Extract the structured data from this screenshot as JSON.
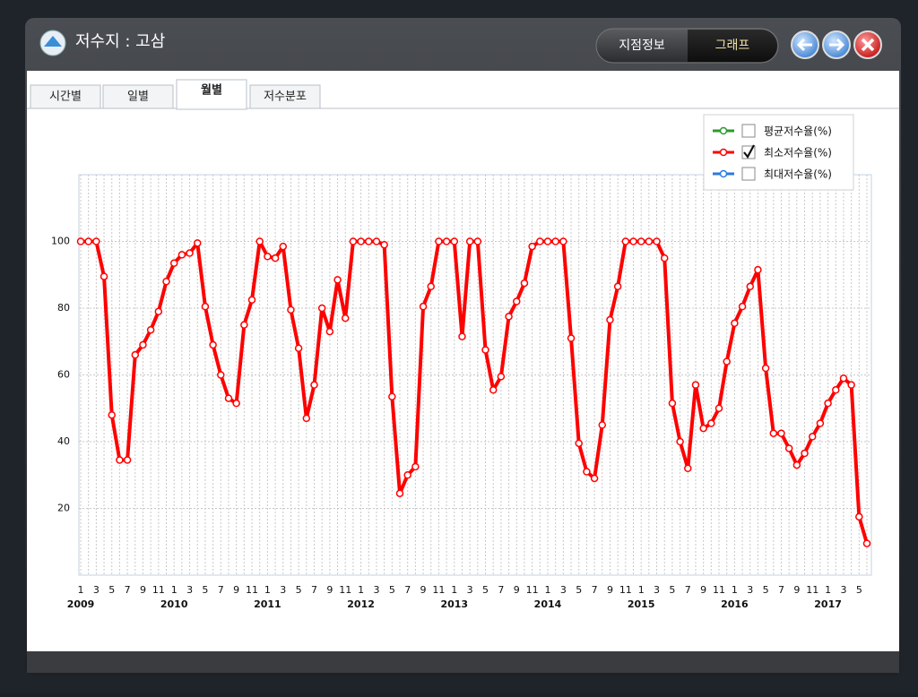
{
  "window": {
    "title": "저수지 : 고삼",
    "buttons": [
      "지점정보",
      "그래프"
    ],
    "active_button": 1
  },
  "tabs": {
    "items": [
      "시간별",
      "일별",
      "월별",
      "저수분포"
    ],
    "active": 2
  },
  "chart_data": {
    "type": "line",
    "categories": [
      "1",
      null,
      "3",
      null,
      "5",
      null,
      "7",
      null,
      "9",
      null,
      "11",
      null,
      "1",
      null,
      "3",
      null,
      "5",
      null,
      "7",
      null,
      "9",
      null,
      "11",
      null,
      "1",
      null,
      "3",
      null,
      "5",
      null,
      "7",
      null,
      "9",
      null,
      "11",
      null,
      "1",
      null,
      "3",
      null,
      "5",
      null,
      "7",
      null,
      "9",
      null,
      "11",
      null,
      "1",
      null,
      "3",
      null,
      "5",
      null,
      "7",
      null,
      "9",
      null,
      "11",
      null,
      "1",
      null,
      "3",
      null,
      "5",
      null,
      "7",
      null,
      "9",
      null,
      "11",
      null,
      "1",
      null,
      "3",
      null,
      "5",
      null,
      "7",
      null,
      "9",
      null,
      "11",
      null,
      "1",
      null,
      "3",
      null,
      "5",
      null,
      "7",
      null,
      "9",
      null,
      "11",
      null,
      "1",
      null,
      "3",
      null,
      "5",
      null
    ],
    "year_labels": [
      "2009",
      "2010",
      "2011",
      "2012",
      "2013",
      "2014",
      "2015",
      "2016",
      "2017"
    ],
    "series": [
      {
        "name": "평균저수율(%)",
        "color": "#2a9a2a",
        "visible": false
      },
      {
        "name": "최소저수율(%)",
        "color": "#ff0000",
        "visible": true,
        "values": [
          100,
          100,
          100,
          89.5,
          48,
          34.5,
          34.5,
          66,
          69,
          73.5,
          79,
          88,
          93.5,
          96,
          96.5,
          99.5,
          80.5,
          69,
          60,
          53,
          51.5,
          75,
          82.5,
          100,
          95.5,
          95,
          98.5,
          79.5,
          68,
          47,
          57,
          80,
          73,
          88.5,
          77,
          100,
          100,
          100,
          100,
          99,
          53.5,
          24.5,
          30,
          32.5,
          80.5,
          86.5,
          100,
          100,
          100,
          71.5,
          100,
          100,
          67.5,
          55.5,
          59.5,
          77.5,
          82,
          87.5,
          98.5,
          100,
          100,
          100,
          100,
          71,
          39.5,
          31,
          29,
          45,
          76.5,
          86.5,
          100,
          100,
          100,
          100,
          100,
          95,
          51.5,
          40,
          32,
          57,
          44,
          45.5,
          50,
          64,
          75.5,
          80.5,
          86.5,
          91.5,
          62,
          42.5,
          42.5,
          38,
          33,
          36.5,
          41.5,
          45.5,
          51.5,
          55.5,
          59,
          57,
          17.5,
          9.5
        ]
      },
      {
        "name": "최대저수율(%)",
        "color": "#2a7ae0",
        "visible": false
      }
    ],
    "ylim": [
      0,
      120
    ],
    "yticks": [
      20,
      40,
      60,
      80,
      100
    ],
    "grid": true,
    "legend": "upper right"
  }
}
